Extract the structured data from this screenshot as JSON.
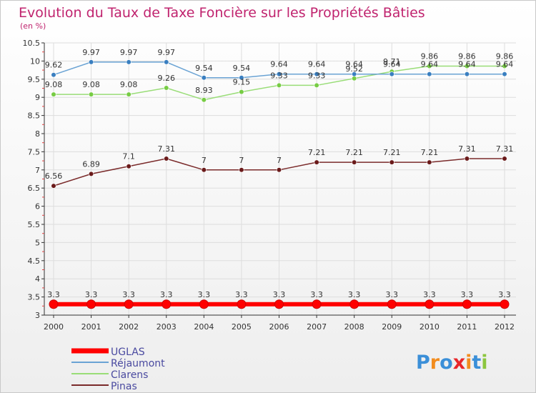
{
  "chart_data": {
    "type": "line",
    "title": "Evolution du Taux de Taxe Foncière sur les Propriétés Bâties",
    "subtitle": "(en %)",
    "xlabel": "",
    "ylabel": "",
    "ylim": [
      3,
      10.5
    ],
    "yticks": [
      "3",
      "3.5",
      "4",
      "4.5",
      "5",
      "5.5",
      "6",
      "6.5",
      "7",
      "7.5",
      "8",
      "8.5",
      "9",
      "9.5",
      "10",
      "10.5"
    ],
    "grid": true,
    "legend_position": "bottom-left",
    "categories": [
      "2000",
      "2001",
      "2002",
      "2003",
      "2004",
      "2005",
      "2006",
      "2007",
      "2008",
      "2009",
      "2010",
      "2011",
      "2012"
    ],
    "series": [
      {
        "name": "UGLAS",
        "color": "#ff0000",
        "values": [
          3.3,
          3.3,
          3.3,
          3.3,
          3.3,
          3.3,
          3.3,
          3.3,
          3.3,
          3.3,
          3.3,
          3.3,
          3.3
        ],
        "labels": [
          "3.3",
          "3.3",
          "3.3",
          "3.3",
          "3.3",
          "3.3",
          "3.3",
          "3.3",
          "3.3",
          "3.3",
          "3.3",
          "3.3",
          "3.3"
        ]
      },
      {
        "name": "Réjaumont",
        "color": "#6aa3d4",
        "marker": "#3a7fc0",
        "values": [
          9.62,
          9.97,
          9.97,
          9.97,
          9.54,
          9.54,
          9.64,
          9.64,
          9.64,
          9.64,
          9.64,
          9.64,
          9.64
        ],
        "labels": [
          "9.62",
          "9.97",
          "9.97",
          "9.97",
          "9.54",
          "9.54",
          "9.64",
          "9.64",
          "9.64",
          "9.64",
          "9.64",
          "9.64",
          "9.64"
        ]
      },
      {
        "name": "Clarens",
        "color": "#99dd77",
        "marker": "#77cc44",
        "values": [
          9.08,
          9.08,
          9.08,
          9.26,
          8.93,
          9.15,
          9.33,
          9.33,
          9.52,
          9.71,
          9.86,
          9.86,
          9.86
        ],
        "labels": [
          "9.08",
          "9.08",
          "9.08",
          "9.26",
          "8.93",
          "9.15",
          "9.33",
          "9.33",
          "9.52",
          "9.71",
          "9.86",
          "9.86",
          "9.86"
        ]
      },
      {
        "name": "Pinas",
        "color": "#7a2a2a",
        "marker": "#6a1a1a",
        "values": [
          6.56,
          6.89,
          7.1,
          7.31,
          7,
          7,
          7,
          7.21,
          7.21,
          7.21,
          7.21,
          7.31,
          7.31
        ],
        "labels": [
          "6.56",
          "6.89",
          "7.1",
          "7.31",
          "7",
          "7",
          "7",
          "7.21",
          "7.21",
          "7.21",
          "7.21",
          "7.31",
          "7.31"
        ]
      }
    ]
  },
  "logo": {
    "text": "Proxiti",
    "letters": [
      "P",
      "r",
      "o",
      "x",
      "i",
      "t",
      "i"
    ],
    "colors": [
      "#3b8fd8",
      "#f28c1e",
      "#3b8fd8",
      "#e8262a",
      "#f28c1e",
      "#3b8fd8",
      "#8cc63f"
    ]
  }
}
